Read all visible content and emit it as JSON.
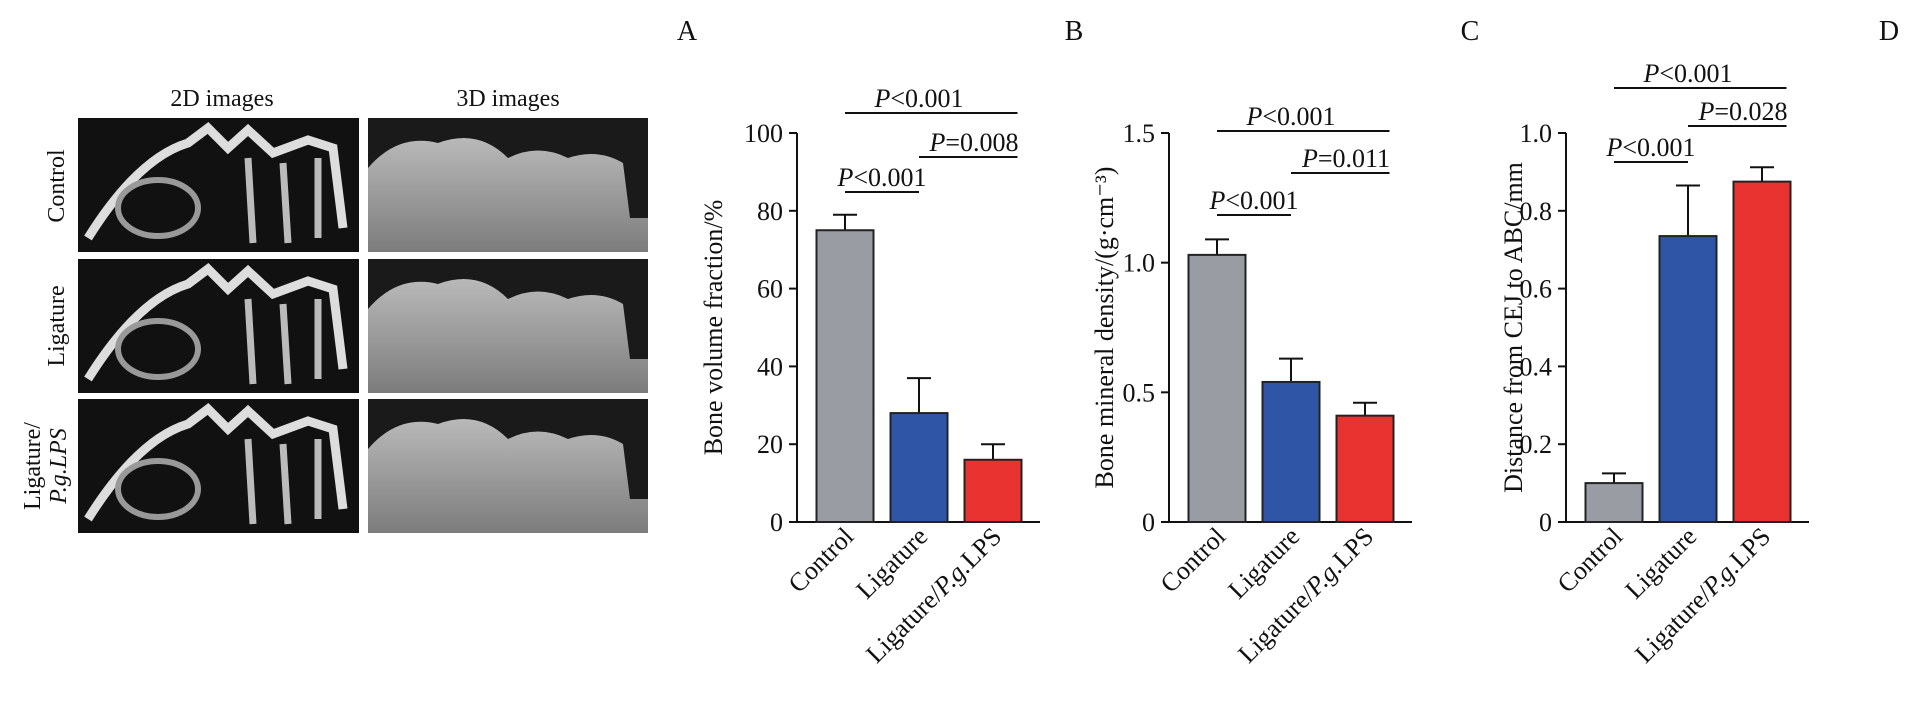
{
  "panel_labels": [
    "A",
    "B",
    "C",
    "D"
  ],
  "images": {
    "column_titles": [
      "2D images",
      "3D images"
    ],
    "row_labels": [
      "Control",
      "Ligature",
      "Ligature/",
      "P.g.LPS"
    ]
  },
  "colors": {
    "Control": "#9a9ca3",
    "Ligature": "#2f56a6",
    "Ligature/P.g.LPS": "#e83330"
  },
  "chart_data": [
    {
      "type": "bar",
      "categories": [
        "Control",
        "Ligature",
        "Ligature/P.g.LPS"
      ],
      "values": [
        75,
        28,
        16
      ],
      "errors": [
        4,
        9,
        4
      ],
      "ylabel": "Bone volume fraction/%",
      "ylim": [
        0,
        100
      ],
      "yticks": [
        0,
        20,
        40,
        60,
        80,
        100
      ],
      "ytick_labels": [
        "0",
        "20",
        "40",
        "60",
        "80",
        "100"
      ],
      "comparisons": [
        {
          "groups": [
            0,
            2
          ],
          "label": "P<0.001"
        },
        {
          "groups": [
            1,
            2
          ],
          "label": "P=0.008"
        },
        {
          "groups": [
            0,
            1
          ],
          "label": "P<0.001"
        }
      ]
    },
    {
      "type": "bar",
      "categories": [
        "Control",
        "Ligature",
        "Ligature/P.g.LPS"
      ],
      "values": [
        1.03,
        0.54,
        0.41
      ],
      "errors": [
        0.06,
        0.09,
        0.05
      ],
      "ylabel": "Bone mineral density/(g·cm⁻³)",
      "ylim": [
        0,
        1.5
      ],
      "yticks": [
        0,
        0.5,
        1.0,
        1.5
      ],
      "ytick_labels": [
        "0",
        "0.5",
        "1.0",
        "1.5"
      ],
      "comparisons": [
        {
          "groups": [
            0,
            2
          ],
          "label": "P<0.001"
        },
        {
          "groups": [
            1,
            2
          ],
          "label": "P=0.011"
        },
        {
          "groups": [
            0,
            1
          ],
          "label": "P<0.001"
        }
      ]
    },
    {
      "type": "bar",
      "categories": [
        "Control",
        "Ligature",
        "Ligature/P.g.LPS"
      ],
      "values": [
        0.1,
        0.735,
        0.875
      ],
      "errors": [
        0.025,
        0.13,
        0.037
      ],
      "ylabel": "Distance from CEJ to ABC/mm",
      "ylim": [
        0,
        1.0
      ],
      "yticks": [
        0,
        0.2,
        0.4,
        0.6,
        0.8,
        1.0
      ],
      "ytick_labels": [
        "0",
        "0.2",
        "0.4",
        "0.6",
        "0.8",
        "1.0"
      ],
      "comparisons": [
        {
          "groups": [
            0,
            2
          ],
          "label": "P<0.001"
        },
        {
          "groups": [
            1,
            2
          ],
          "label": "P=0.028"
        },
        {
          "groups": [
            0,
            1
          ],
          "label": "P<0.001"
        }
      ]
    }
  ]
}
